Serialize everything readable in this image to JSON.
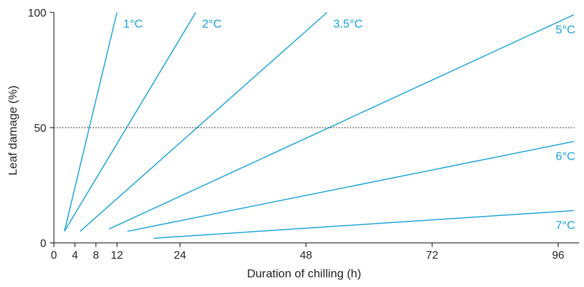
{
  "chart_data": {
    "type": "line",
    "title": "",
    "xlabel": "Duration of chilling (h)",
    "ylabel": "Leaf damage (%)",
    "xlim": [
      0,
      100
    ],
    "ylim": [
      0,
      100
    ],
    "x_ticks": [
      0,
      4,
      8,
      12,
      24,
      48,
      72,
      96
    ],
    "y_ticks": [
      0,
      50,
      100
    ],
    "grid": false,
    "series_color": "#1aa3d9",
    "reference_lines": [
      {
        "axis": "y",
        "value": 50,
        "style": "dotted"
      }
    ],
    "series": [
      {
        "name": "1°C",
        "x": [
          2,
          12
        ],
        "y": [
          5,
          100
        ],
        "label_position": "end"
      },
      {
        "name": "2°C",
        "x": [
          2,
          27
        ],
        "y": [
          5,
          100
        ],
        "label_position": "end"
      },
      {
        "name": "3.5°C",
        "x": [
          5,
          52
        ],
        "y": [
          5,
          100
        ],
        "label_position": "end"
      },
      {
        "name": "5°C",
        "x": [
          10.5,
          99
        ],
        "y": [
          6,
          99
        ],
        "label_position": "below-end"
      },
      {
        "name": "6°C",
        "x": [
          14,
          99
        ],
        "y": [
          5,
          44
        ],
        "label_position": "below-end"
      },
      {
        "name": "7°C",
        "x": [
          19,
          99
        ],
        "y": [
          2,
          14
        ],
        "label_position": "below-end"
      }
    ]
  }
}
